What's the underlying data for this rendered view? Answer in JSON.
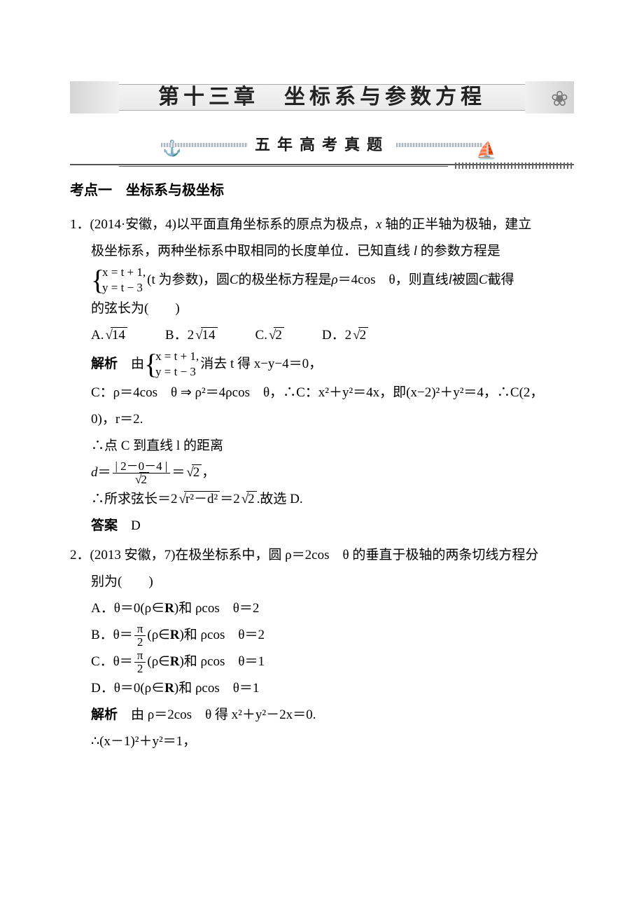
{
  "chapter_title": "第十三章　坐标系与参数方程",
  "section_title": "五年高考真题",
  "kaodian": "考点一　坐标系与极坐标",
  "q1": {
    "num": "1．",
    "source": "(2014·安徽，4)",
    "stem_a": "以平面直角坐标系的原点为极点，",
    "stem_b": " 轴的正半轴为极轴，建立",
    "stem_c": "极坐标系，两种坐标系中取相同的长度单位．已知直线 ",
    "stem_d": " 的参数方程是",
    "param_row1": "x = t + 1,",
    "param_row2": "y = t − 3",
    "stem_e": "(t 为参数)，圆 ",
    "stem_f": " 的极坐标方程是 ",
    "stem_g": "＝4cos　θ，则直线 ",
    "stem_h": " 被圆 ",
    "stem_i": " 截得",
    "stem_j": "的弦长为(　　)",
    "optA_pre": "A.",
    "optA_rad": "14",
    "optB_pre": "B．2",
    "optB_rad": "14",
    "optC_pre": "C.",
    "optC_rad": "2",
    "optD_pre": "D．2",
    "optD_rad": "2",
    "jiexi_label": "解析",
    "jiexi_a": "　由",
    "jiexi_b": "消去 t 得 x−y−4＝0，",
    "jiexi_c": "C：ρ＝4cos　θ ⇒ ρ²＝4ρcos　θ，∴C：x²＋y²＝4x，即(x−2)²＋y²＝4，∴C(2，",
    "jiexi_d": "0)，r＝2.",
    "jiexi_e": "∴点 C 到直线 l 的距离",
    "d_num": "| 2－0－4 |",
    "d_den": "2",
    "d_eq": "2",
    "jiexi_f": "∴所求弦长＝2",
    "jiexi_f_rad": "r²－d²",
    "jiexi_f2": "＝2",
    "jiexi_f2_rad": "2",
    "jiexi_f3": ".故选 D.",
    "ans_label": "答案",
    "ans": "　D",
    "brace_rows": {
      "r1": "x = t + 1,",
      "r2": "y = t − 3"
    }
  },
  "q2": {
    "num": "2．",
    "source": "(2013 安徽，7)",
    "stem_a": "在极坐标系中，圆 ρ＝2cos　θ 的垂直于极轴的两条切线方程分",
    "stem_b": "别为(　　)",
    "A1": "A．θ＝0(ρ∈",
    "A2": ")和 ρcos　θ＝2",
    "B1": "B．θ＝",
    "B_num": "π",
    "B_den": "2",
    "B2": "(ρ∈",
    "B3": ")和 ρcos　θ＝2",
    "C1": "C．θ＝",
    "C_num": "π",
    "C_den": "2",
    "C2": "(ρ∈",
    "C3": ")和 ρcos　θ＝1",
    "D1": "D．θ＝0(ρ∈",
    "D2": ")和 ρcos　θ＝1",
    "jiexi_label": "解析",
    "jiexi_a": "　由 ρ＝2cos　θ 得 x²＋y²－2x＝0.",
    "jiexi_b": "∴(x－1)²＋y²＝1，"
  }
}
